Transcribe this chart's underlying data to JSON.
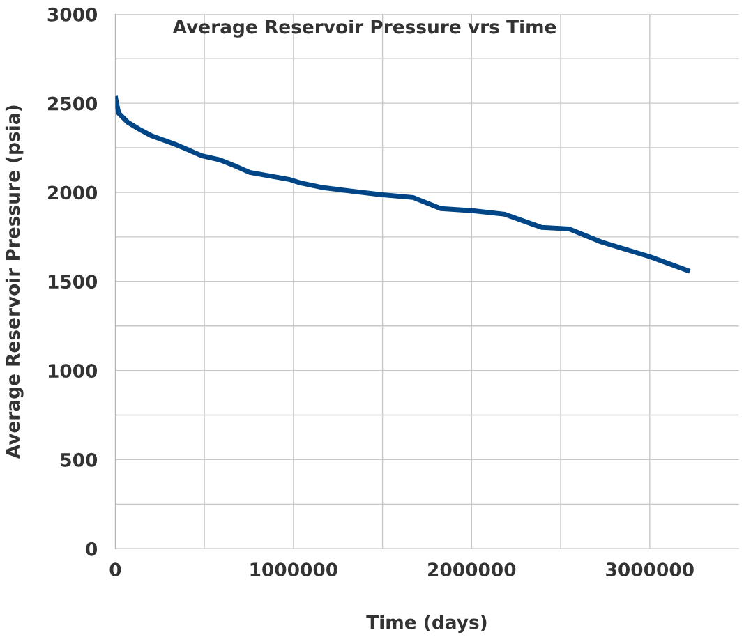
{
  "chart_data": {
    "type": "line",
    "title": "Average Reservoir Pressure vrs Time",
    "xlabel": "Time (days)",
    "ylabel": "Average Reservoir Pressure (psia)",
    "x": [
      0,
      5000,
      19000,
      70000,
      135000,
      200000,
      330000,
      395000,
      484000,
      588000,
      666000,
      755000,
      975000,
      1038000,
      1169000,
      1490000,
      1672000,
      1827000,
      2005000,
      2187000,
      2393000,
      2547000,
      2729000,
      3000000,
      3225000
    ],
    "series": [
      {
        "color": "#004687",
        "values": [
          2540,
          2510,
          2444,
          2393,
          2354,
          2319,
          2272,
          2245,
          2206,
          2182,
          2151,
          2112,
          2073,
          2053,
          2026,
          1987,
          1971,
          1909,
          1897,
          1877,
          1803,
          1795,
          1721,
          1639,
          1557
        ]
      }
    ],
    "xlim": [
      0,
      3500000
    ],
    "ylim": [
      0,
      3000
    ],
    "xticks": [
      0,
      {
        "value": 500000,
        "label": null
      },
      1000000,
      {
        "value": 1500000,
        "label": null
      },
      2000000,
      {
        "value": 2500000,
        "label": null
      },
      3000000
    ],
    "yticks": [
      0,
      {
        "value": 250,
        "label": null
      },
      500,
      {
        "value": 750,
        "label": null
      },
      1000,
      {
        "value": 1250,
        "label": null
      },
      1500,
      {
        "value": 1750,
        "label": null
      },
      2000,
      {
        "value": 2250,
        "label": null
      },
      2500,
      {
        "value": 2750,
        "label": null
      },
      3000
    ],
    "grid": true,
    "marker": "none",
    "line_style": "solid"
  }
}
